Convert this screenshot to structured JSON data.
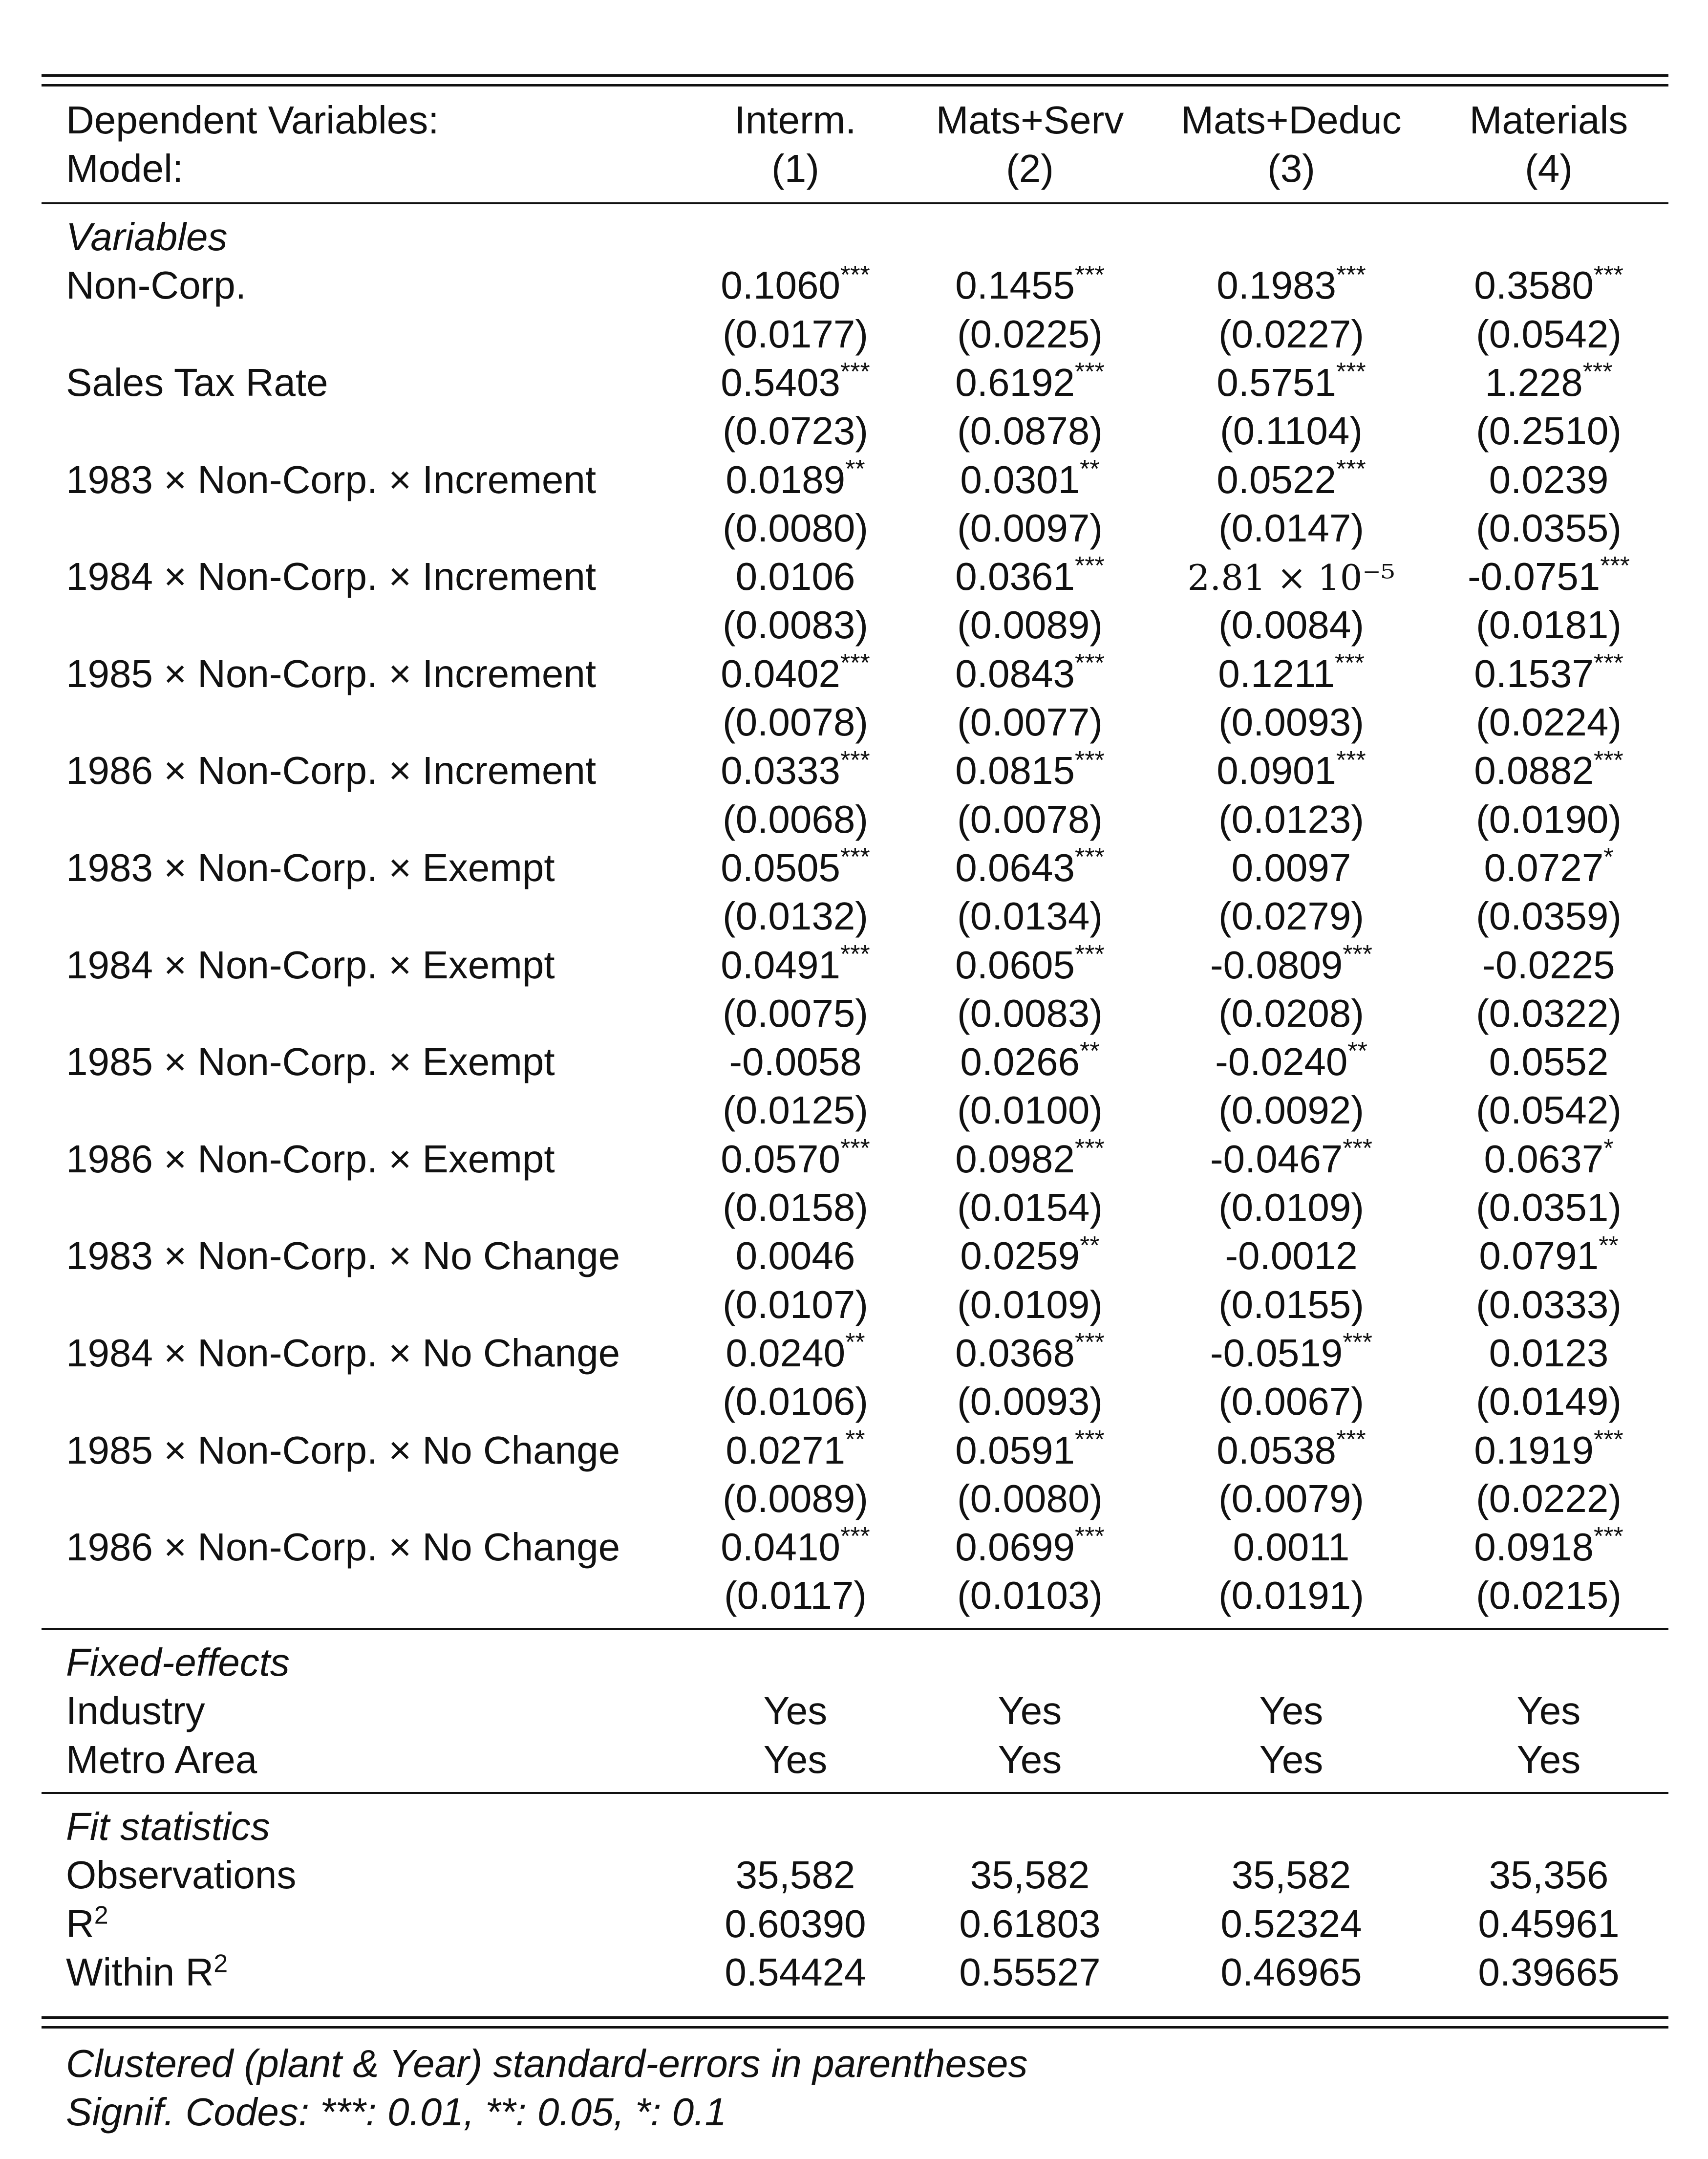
{
  "header": {
    "dep_label": "Dependent Variables:",
    "model_label": "Model:",
    "columns": [
      {
        "name": "Interm.",
        "model": "(1)"
      },
      {
        "name": "Mats+Serv",
        "model": "(2)"
      },
      {
        "name": "Mats+Deduc",
        "model": "(3)"
      },
      {
        "name": "Materials",
        "model": "(4)"
      }
    ]
  },
  "sections": {
    "variables": "Variables",
    "fixed_effects": "Fixed-effects",
    "fit_statistics": "Fit statistics"
  },
  "variables": [
    {
      "label": "Non-Corp.",
      "coef": [
        "0.1060",
        "0.1455",
        "0.1983",
        "0.3580"
      ],
      "stars": [
        "***",
        "***",
        "***",
        "***"
      ],
      "se": [
        "(0.0177)",
        "(0.0225)",
        "(0.0227)",
        "(0.0542)"
      ]
    },
    {
      "label": "Sales Tax Rate",
      "coef": [
        "0.5403",
        "0.6192",
        "0.5751",
        "1.228"
      ],
      "stars": [
        "***",
        "***",
        "***",
        "***"
      ],
      "se": [
        "(0.0723)",
        "(0.0878)",
        "(0.1104)",
        "(0.2510)"
      ]
    },
    {
      "label": "1983 × Non-Corp. × Increment",
      "coef": [
        "0.0189",
        "0.0301",
        "0.0522",
        "0.0239"
      ],
      "stars": [
        "**",
        "**",
        "***",
        ""
      ],
      "se": [
        "(0.0080)",
        "(0.0097)",
        "(0.0147)",
        "(0.0355)"
      ]
    },
    {
      "label": "1984 × Non-Corp. × Increment",
      "coef": [
        "0.0106",
        "0.0361",
        "2.81 × 10⁻⁵",
        "-0.0751"
      ],
      "stars": [
        "",
        "***",
        "",
        "***"
      ],
      "se": [
        "(0.0083)",
        "(0.0089)",
        "(0.0084)",
        "(0.0181)"
      ]
    },
    {
      "label": "1985 × Non-Corp. × Increment",
      "coef": [
        "0.0402",
        "0.0843",
        "0.1211",
        "0.1537"
      ],
      "stars": [
        "***",
        "***",
        "***",
        "***"
      ],
      "se": [
        "(0.0078)",
        "(0.0077)",
        "(0.0093)",
        "(0.0224)"
      ]
    },
    {
      "label": "1986 × Non-Corp. × Increment",
      "coef": [
        "0.0333",
        "0.0815",
        "0.0901",
        "0.0882"
      ],
      "stars": [
        "***",
        "***",
        "***",
        "***"
      ],
      "se": [
        "(0.0068)",
        "(0.0078)",
        "(0.0123)",
        "(0.0190)"
      ]
    },
    {
      "label": "1983 × Non-Corp. × Exempt",
      "coef": [
        "0.0505",
        "0.0643",
        "0.0097",
        "0.0727"
      ],
      "stars": [
        "***",
        "***",
        "",
        "*"
      ],
      "se": [
        "(0.0132)",
        "(0.0134)",
        "(0.0279)",
        "(0.0359)"
      ]
    },
    {
      "label": "1984 × Non-Corp. × Exempt",
      "coef": [
        "0.0491",
        "0.0605",
        "-0.0809",
        "-0.0225"
      ],
      "stars": [
        "***",
        "***",
        "***",
        ""
      ],
      "se": [
        "(0.0075)",
        "(0.0083)",
        "(0.0208)",
        "(0.0322)"
      ]
    },
    {
      "label": "1985 × Non-Corp. × Exempt",
      "coef": [
        "-0.0058",
        "0.0266",
        "-0.0240",
        "0.0552"
      ],
      "stars": [
        "",
        "**",
        "**",
        ""
      ],
      "se": [
        "(0.0125)",
        "(0.0100)",
        "(0.0092)",
        "(0.0542)"
      ]
    },
    {
      "label": "1986 × Non-Corp. × Exempt",
      "coef": [
        "0.0570",
        "0.0982",
        "-0.0467",
        "0.0637"
      ],
      "stars": [
        "***",
        "***",
        "***",
        "*"
      ],
      "se": [
        "(0.0158)",
        "(0.0154)",
        "(0.0109)",
        "(0.0351)"
      ]
    },
    {
      "label": "1983 × Non-Corp. × No Change",
      "coef": [
        "0.0046",
        "0.0259",
        "-0.0012",
        "0.0791"
      ],
      "stars": [
        "",
        "**",
        "",
        "**"
      ],
      "se": [
        "(0.0107)",
        "(0.0109)",
        "(0.0155)",
        "(0.0333)"
      ]
    },
    {
      "label": "1984 × Non-Corp. × No Change",
      "coef": [
        "0.0240",
        "0.0368",
        "-0.0519",
        "0.0123"
      ],
      "stars": [
        "**",
        "***",
        "***",
        ""
      ],
      "se": [
        "(0.0106)",
        "(0.0093)",
        "(0.0067)",
        "(0.0149)"
      ]
    },
    {
      "label": "1985 × Non-Corp. × No Change",
      "coef": [
        "0.0271",
        "0.0591",
        "0.0538",
        "0.1919"
      ],
      "stars": [
        "**",
        "***",
        "***",
        "***"
      ],
      "se": [
        "(0.0089)",
        "(0.0080)",
        "(0.0079)",
        "(0.0222)"
      ]
    },
    {
      "label": "1986 × Non-Corp. × No Change",
      "coef": [
        "0.0410",
        "0.0699",
        "0.0011",
        "0.0918"
      ],
      "stars": [
        "***",
        "***",
        "",
        "***"
      ],
      "se": [
        "(0.0117)",
        "(0.0103)",
        "(0.0191)",
        "(0.0215)"
      ]
    }
  ],
  "fixed_effects": [
    {
      "label": "Industry",
      "values": [
        "Yes",
        "Yes",
        "Yes",
        "Yes"
      ]
    },
    {
      "label": "Metro Area",
      "values": [
        "Yes",
        "Yes",
        "Yes",
        "Yes"
      ]
    }
  ],
  "fit_statistics": [
    {
      "label": "Observations",
      "sup": "",
      "values": [
        "35,582",
        "35,582",
        "35,582",
        "35,356"
      ]
    },
    {
      "label": "R",
      "sup": "2",
      "values": [
        "0.60390",
        "0.61803",
        "0.52324",
        "0.45961"
      ]
    },
    {
      "label": "Within R",
      "sup": "2",
      "values": [
        "0.54424",
        "0.55527",
        "0.46965",
        "0.39665"
      ]
    }
  ],
  "notes": [
    "Clustered (plant & Year) standard-errors in parentheses",
    "Signif. Codes: ***: 0.01, **: 0.05, *: 0.1"
  ]
}
